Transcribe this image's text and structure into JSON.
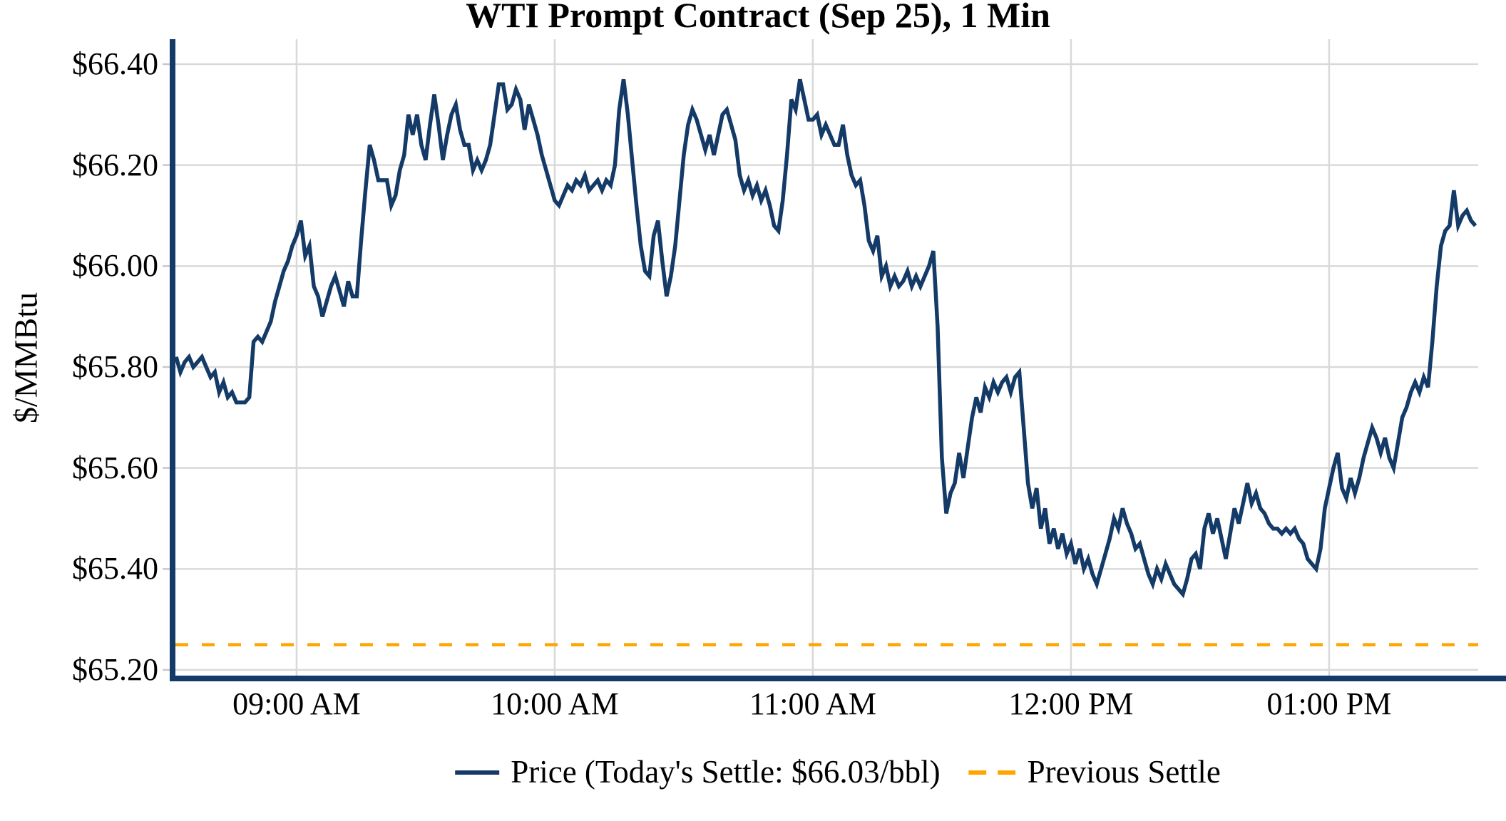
{
  "chart_data": {
    "type": "line",
    "title": "WTI Prompt Contract (Sep 25), 1 Min",
    "ylabel": "$/MMBtu",
    "xlabel": "",
    "grid": true,
    "legend_position": "bottom-center",
    "ylim": [
      65.2,
      66.45
    ],
    "y_ticks": [
      {
        "label": "$65.20",
        "value": 65.2
      },
      {
        "label": "$65.40",
        "value": 65.4
      },
      {
        "label": "$65.60",
        "value": 65.6
      },
      {
        "label": "$65.80",
        "value": 65.8
      },
      {
        "label": "$66.00",
        "value": 66.0
      },
      {
        "label": "$66.20",
        "value": 66.2
      },
      {
        "label": "$66.40",
        "value": 66.4
      }
    ],
    "x_ticks": [
      {
        "label": "09:00 AM",
        "minute": 28
      },
      {
        "label": "10:00 AM",
        "minute": 88
      },
      {
        "label": "11:00 AM",
        "minute": 148
      },
      {
        "label": "12:00 PM",
        "minute": 208
      },
      {
        "label": "01:00 PM",
        "minute": 268
      }
    ],
    "today_settle_text": "$66.03/bbl",
    "previous_settle_value": 65.25,
    "series": [
      {
        "name": "Price (Today's Settle: $66.03/bbl)",
        "kind": "line",
        "style": "solid",
        "color": "#143a67",
        "start_time": "08:32 AM",
        "interval_minutes": 1,
        "values": [
          65.82,
          65.79,
          65.81,
          65.82,
          65.8,
          65.81,
          65.82,
          65.8,
          65.78,
          65.79,
          65.75,
          65.77,
          65.74,
          65.75,
          65.73,
          65.73,
          65.73,
          65.74,
          65.85,
          65.86,
          65.85,
          65.87,
          65.89,
          65.93,
          65.96,
          65.99,
          66.01,
          66.04,
          66.06,
          66.09,
          66.02,
          66.04,
          65.96,
          65.94,
          65.9,
          65.93,
          65.96,
          65.98,
          65.95,
          65.92,
          65.97,
          65.94,
          65.94,
          66.05,
          66.15,
          66.24,
          66.21,
          66.17,
          66.17,
          66.17,
          66.12,
          66.14,
          66.19,
          66.22,
          66.3,
          66.26,
          66.3,
          66.24,
          66.21,
          66.28,
          66.34,
          66.28,
          66.21,
          66.26,
          66.3,
          66.32,
          66.27,
          66.24,
          66.24,
          66.19,
          66.21,
          66.19,
          66.21,
          66.24,
          66.3,
          66.36,
          66.36,
          66.31,
          66.32,
          66.35,
          66.33,
          66.27,
          66.32,
          66.29,
          66.26,
          66.22,
          66.19,
          66.16,
          66.13,
          66.12,
          66.14,
          66.16,
          66.15,
          66.17,
          66.16,
          66.18,
          66.15,
          66.16,
          66.17,
          66.15,
          66.17,
          66.16,
          66.2,
          66.31,
          66.37,
          66.3,
          66.21,
          66.12,
          66.04,
          65.99,
          65.98,
          66.06,
          66.09,
          66.01,
          65.94,
          65.98,
          66.04,
          66.13,
          66.22,
          66.28,
          66.31,
          66.29,
          66.26,
          66.23,
          66.26,
          66.22,
          66.26,
          66.3,
          66.31,
          66.28,
          66.25,
          66.18,
          66.15,
          66.17,
          66.14,
          66.16,
          66.13,
          66.15,
          66.12,
          66.08,
          66.07,
          66.13,
          66.22,
          66.33,
          66.31,
          66.37,
          66.33,
          66.29,
          66.29,
          66.3,
          66.26,
          66.28,
          66.26,
          66.24,
          66.24,
          66.28,
          66.22,
          66.18,
          66.16,
          66.17,
          66.12,
          66.05,
          66.03,
          66.06,
          65.98,
          66.0,
          65.96,
          65.98,
          65.96,
          65.97,
          65.99,
          65.96,
          65.98,
          65.96,
          65.98,
          66.0,
          66.03,
          65.88,
          65.62,
          65.51,
          65.55,
          65.57,
          65.63,
          65.58,
          65.64,
          65.7,
          65.74,
          65.71,
          65.76,
          65.74,
          65.77,
          65.75,
          65.77,
          65.78,
          65.75,
          65.78,
          65.79,
          65.68,
          65.57,
          65.52,
          65.56,
          65.48,
          65.52,
          65.45,
          65.48,
          65.44,
          65.47,
          65.43,
          65.45,
          65.41,
          65.44,
          65.4,
          65.42,
          65.39,
          65.37,
          65.4,
          65.43,
          65.46,
          65.5,
          65.48,
          65.52,
          65.49,
          65.47,
          65.44,
          65.45,
          65.42,
          65.39,
          65.37,
          65.4,
          65.38,
          65.41,
          65.39,
          65.37,
          65.36,
          65.35,
          65.38,
          65.42,
          65.43,
          65.4,
          65.48,
          65.51,
          65.47,
          65.5,
          65.46,
          65.42,
          65.47,
          65.52,
          65.49,
          65.53,
          65.57,
          65.53,
          65.55,
          65.52,
          65.51,
          65.49,
          65.48,
          65.48,
          65.47,
          65.48,
          65.47,
          65.48,
          65.46,
          65.45,
          65.42,
          65.41,
          65.4,
          65.44,
          65.52,
          65.56,
          65.6,
          65.63,
          65.56,
          65.54,
          65.58,
          65.55,
          65.58,
          65.62,
          65.65,
          65.68,
          65.66,
          65.63,
          65.66,
          65.62,
          65.6,
          65.65,
          65.7,
          65.72,
          65.75,
          65.77,
          65.75,
          65.78,
          65.76,
          65.85,
          65.96,
          66.04,
          66.07,
          66.08,
          66.15,
          66.08,
          66.1,
          66.11,
          66.09,
          66.08
        ]
      },
      {
        "name": "Previous Settle",
        "kind": "hline",
        "style": "dashed",
        "color": "#ffa500",
        "value": 65.25
      }
    ]
  },
  "colors": {
    "price_line": "#143a67",
    "previous_settle": "#ffa500",
    "gridline": "#d9d9d9",
    "tick_mark": "#c8c8c8",
    "spine": "#143a67",
    "background": "#ffffff",
    "text": "#000000"
  }
}
